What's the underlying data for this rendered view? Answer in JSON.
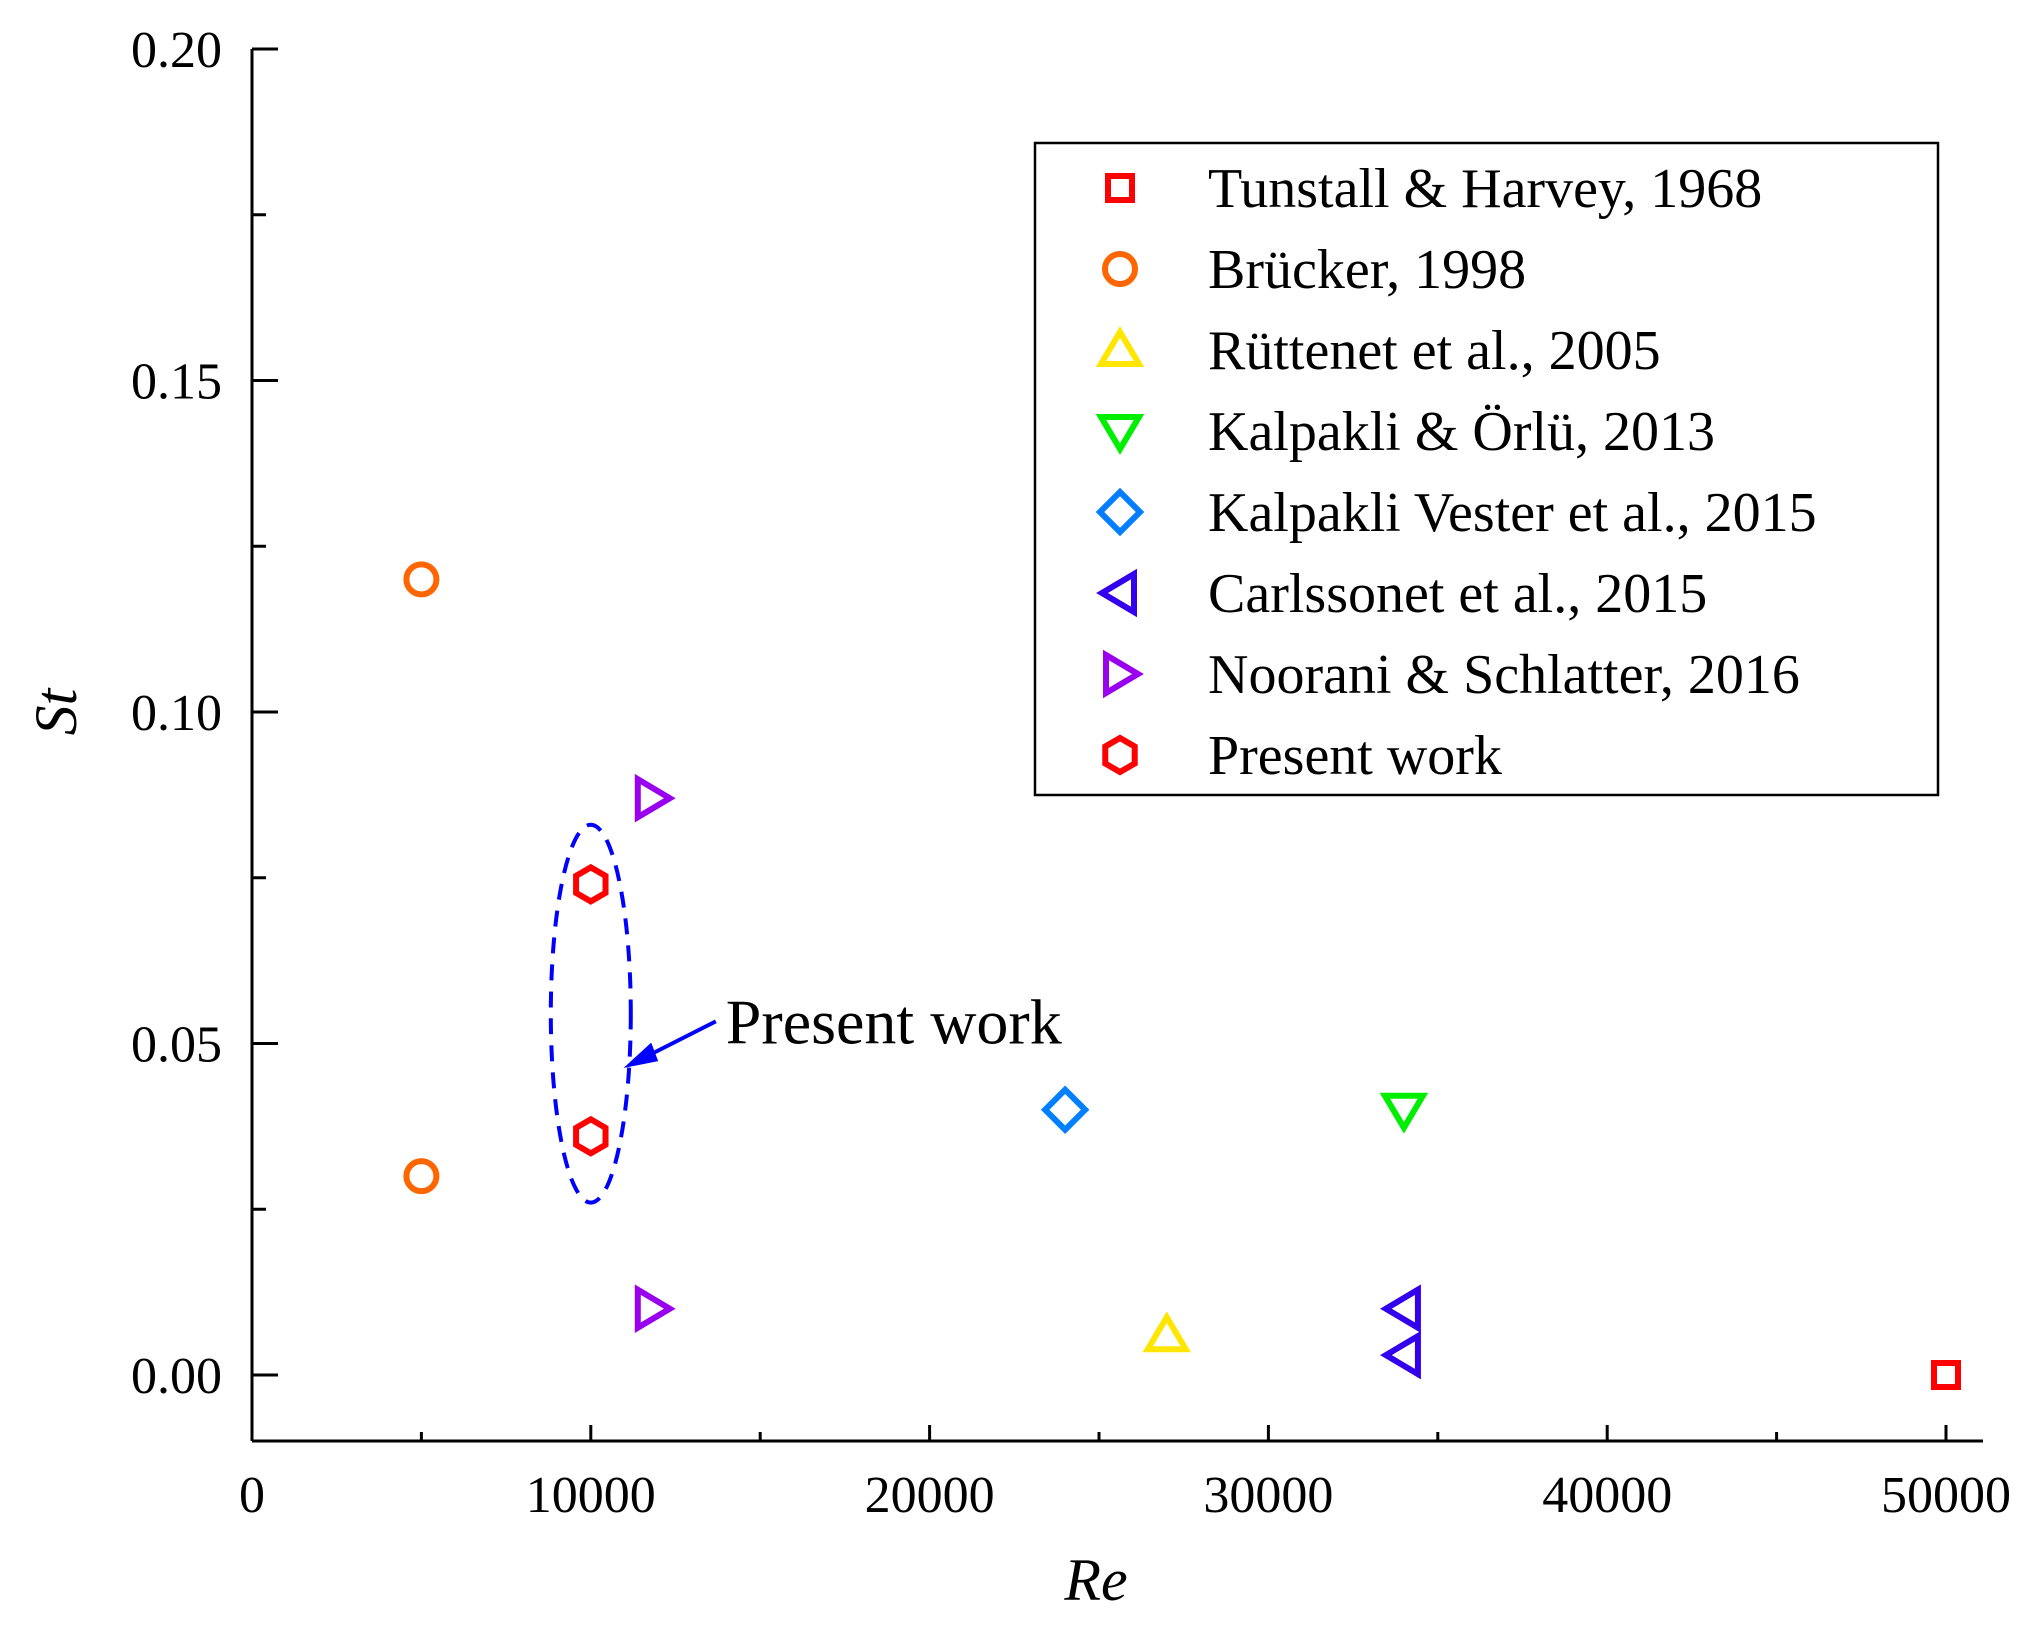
{
  "chart_data": {
    "type": "scatter",
    "title": "",
    "xlabel": "Re",
    "ylabel": "St",
    "xlim": [
      0,
      51000
    ],
    "ylim": [
      -0.01,
      0.2
    ],
    "x_ticks": [
      0,
      10000,
      20000,
      30000,
      40000,
      50000
    ],
    "x_tick_labels": [
      "0",
      "10000",
      "20000",
      "30000",
      "40000",
      "50000"
    ],
    "x_minor_ticks": [
      5000,
      15000,
      25000,
      35000,
      45000
    ],
    "y_ticks": [
      0.0,
      0.05,
      0.1,
      0.15,
      0.2
    ],
    "y_tick_labels": [
      "0.00",
      "0.05",
      "0.10",
      "0.15",
      "0.20"
    ],
    "y_minor_ticks": [
      0.025,
      0.075,
      0.125,
      0.175
    ],
    "grid": false,
    "legend_position": "top-right",
    "series": [
      {
        "name": "Tunstall & Harvey, 1968",
        "marker": "square",
        "color": "#ff0000",
        "points": [
          {
            "x": 50000,
            "y": 0.0
          }
        ]
      },
      {
        "name": "Brücker, 1998",
        "marker": "circle",
        "color": "#ff6600",
        "points": [
          {
            "x": 5000,
            "y": 0.12
          },
          {
            "x": 5000,
            "y": 0.03
          }
        ]
      },
      {
        "name": "Rüttenet et al., 2005",
        "marker": "triangle-up",
        "color": "#ffe600",
        "points": [
          {
            "x": 27000,
            "y": 0.006
          }
        ]
      },
      {
        "name": "Kalpakli & Örlü, 2013",
        "marker": "triangle-down",
        "color": "#00ee00",
        "points": [
          {
            "x": 34000,
            "y": 0.04
          }
        ]
      },
      {
        "name": "Kalpakli Vester et al., 2015",
        "marker": "diamond",
        "color": "#0080ff",
        "points": [
          {
            "x": 24000,
            "y": 0.04
          }
        ]
      },
      {
        "name": "Carlssonet et al., 2015",
        "marker": "triangle-left",
        "color": "#3300ee",
        "points": [
          {
            "x": 34000,
            "y": 0.01
          },
          {
            "x": 34000,
            "y": 0.003
          }
        ]
      },
      {
        "name": "Noorani & Schlatter, 2016",
        "marker": "triangle-right",
        "color": "#9900ee",
        "points": [
          {
            "x": 11800,
            "y": 0.087
          },
          {
            "x": 11800,
            "y": 0.01
          }
        ]
      },
      {
        "name": "Present work",
        "marker": "hexagon",
        "color": "#ff0000",
        "points": [
          {
            "x": 10000,
            "y": 0.074
          },
          {
            "x": 10000,
            "y": 0.036
          }
        ]
      }
    ],
    "annotations": [
      {
        "text": "Present work",
        "target_x": 10000,
        "target_y": 0.055,
        "ellipse_y_range": [
          0.026,
          0.083
        ],
        "color": "#0000ff"
      }
    ]
  }
}
